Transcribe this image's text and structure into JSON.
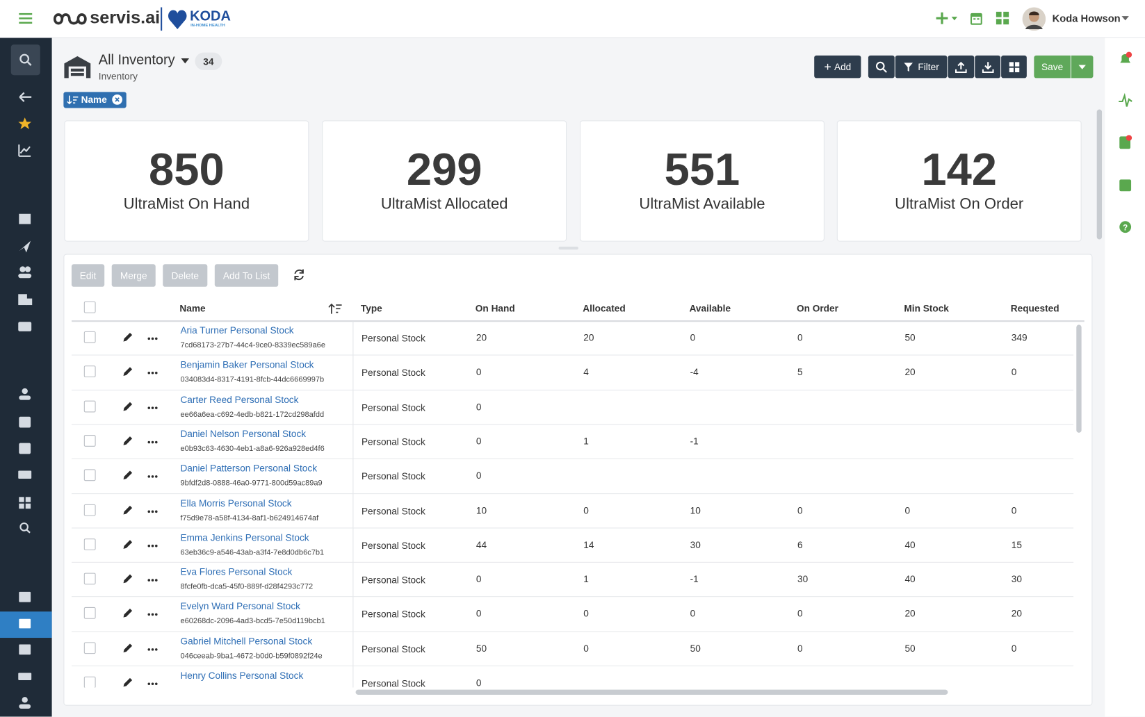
{
  "header": {
    "brand": "servis.ai",
    "partner": "KODA",
    "partner_sub": "IN-HOME HEALTH",
    "user": "Koda Howson"
  },
  "page": {
    "title": "All Inventory",
    "count": 34,
    "subtitle": "Inventory",
    "sort_chip": "Name"
  },
  "toolbar": {
    "add": "Add",
    "filter": "Filter",
    "save": "Save"
  },
  "stats": [
    {
      "value": 850,
      "label": "UltraMist On Hand"
    },
    {
      "value": 299,
      "label": "UltraMist Allocated"
    },
    {
      "value": 551,
      "label": "UltraMist Available"
    },
    {
      "value": 142,
      "label": "UltraMist On Order"
    }
  ],
  "actions": [
    "Edit",
    "Merge",
    "Delete",
    "Add To List"
  ],
  "table": {
    "columns": [
      "Name",
      "Type",
      "On Hand",
      "Allocated",
      "Available",
      "On Order",
      "Min Stock",
      "Requested"
    ],
    "rows": [
      {
        "name": "Aria Turner Personal Stock",
        "id": "7cd68173-27b7-44c4-9ce0-8339ec589a6e",
        "type": "Personal Stock",
        "values": [
          20,
          20,
          0,
          0,
          50,
          349
        ]
      },
      {
        "name": "Benjamin Baker Personal Stock",
        "id": "034083d4-8317-4191-8fcb-44dc6669997b",
        "type": "Personal Stock",
        "values": [
          0,
          4,
          -4,
          5,
          20,
          0
        ]
      },
      {
        "name": "Carter Reed Personal Stock",
        "id": "ee66a6ea-c692-4edb-b821-172cd298afdd",
        "type": "Personal Stock",
        "values": [
          0,
          null,
          null,
          null,
          null,
          null
        ]
      },
      {
        "name": "Daniel Nelson Personal Stock",
        "id": "e0b93c63-4630-4eb1-a8a6-926a928ed4f6",
        "type": "Personal Stock",
        "values": [
          0,
          1,
          -1,
          null,
          null,
          null
        ]
      },
      {
        "name": "Daniel Patterson Personal Stock",
        "id": "9bfdf2d8-0888-46a0-9771-800d59ac89a9",
        "type": "Personal Stock",
        "values": [
          0,
          null,
          null,
          null,
          null,
          null
        ]
      },
      {
        "name": "Ella Morris Personal Stock",
        "id": "f75d9e78-a58f-4134-8af1-b624914674af",
        "type": "Personal Stock",
        "values": [
          10,
          0,
          10,
          0,
          0,
          0
        ]
      },
      {
        "name": "Emma Jenkins Personal Stock",
        "id": "63eb36c9-a546-43ab-a3f4-7e8d0db6c7b1",
        "type": "Personal Stock",
        "values": [
          44,
          14,
          30,
          6,
          40,
          15
        ]
      },
      {
        "name": "Eva Flores Personal Stock",
        "id": "8fcfe0fb-dca5-45f0-889f-d28f4293c772",
        "type": "Personal Stock",
        "values": [
          0,
          1,
          -1,
          30,
          40,
          30
        ]
      },
      {
        "name": "Evelyn Ward Personal Stock",
        "id": "e60268dc-2096-4ad3-bcd5-7e50d119bcb1",
        "type": "Personal Stock",
        "values": [
          0,
          0,
          0,
          0,
          20,
          20
        ]
      },
      {
        "name": "Gabriel Mitchell Personal Stock",
        "id": "046ceeab-9ba1-4672-b0d0-b59f0892f24e",
        "type": "Personal Stock",
        "values": [
          50,
          0,
          50,
          0,
          50,
          0
        ]
      },
      {
        "name": "Henry Collins Personal Stock",
        "type": "Personal Stock",
        "values": [
          0,
          null,
          null,
          null,
          null,
          null
        ]
      }
    ]
  }
}
